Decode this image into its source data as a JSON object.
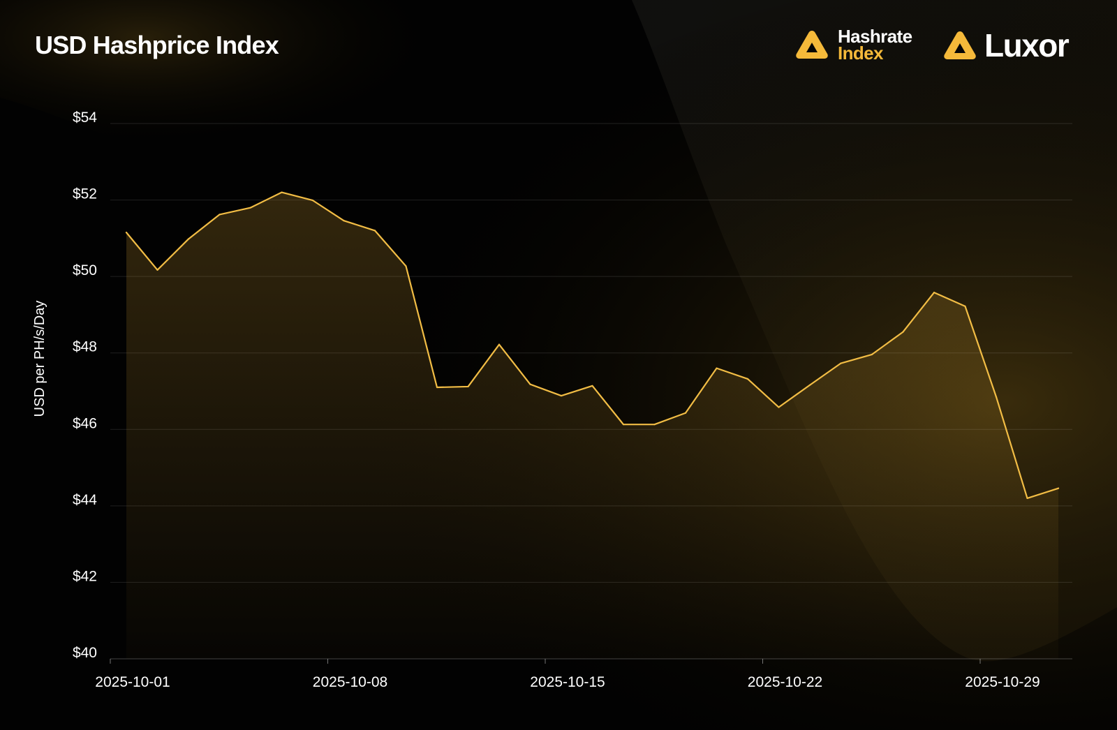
{
  "title": "USD Hashprice Index",
  "logos": {
    "hashrate_line1": "Hashrate",
    "hashrate_line2": "Index",
    "luxor": "Luxor"
  },
  "colors": {
    "background": "#020202",
    "accent": "#f5b93a",
    "line": "#f2bd45",
    "grid": "#2a2620"
  },
  "icons": [
    "hashrate-index-logo-icon",
    "luxor-logo-icon"
  ],
  "chart_data": {
    "type": "area",
    "title": "USD Hashprice Index",
    "ylabel": "USD per PH/s/Day",
    "xlabel": "",
    "ylim": [
      40,
      54
    ],
    "y_ticks": [
      40,
      42,
      44,
      46,
      48,
      50,
      52,
      54
    ],
    "y_tick_labels": [
      "$40",
      "$42",
      "$44",
      "$46",
      "$48",
      "$50",
      "$52",
      "$54"
    ],
    "x_ticks": [
      "2025-10-01",
      "2025-10-08",
      "2025-10-15",
      "2025-10-22",
      "2025-10-29"
    ],
    "grid": true,
    "x": [
      "2025-10-01",
      "2025-10-02",
      "2025-10-03",
      "2025-10-04",
      "2025-10-05",
      "2025-10-06",
      "2025-10-07",
      "2025-10-08",
      "2025-10-09",
      "2025-10-10",
      "2025-10-11",
      "2025-10-12",
      "2025-10-13",
      "2025-10-14",
      "2025-10-15",
      "2025-10-16",
      "2025-10-17",
      "2025-10-18",
      "2025-10-19",
      "2025-10-20",
      "2025-10-21",
      "2025-10-22",
      "2025-10-23",
      "2025-10-24",
      "2025-10-25",
      "2025-10-26",
      "2025-10-27",
      "2025-10-28",
      "2025-10-29",
      "2025-10-30",
      "2025-10-31"
    ],
    "values": [
      51.15,
      50.17,
      50.98,
      51.62,
      51.8,
      52.2,
      51.99,
      51.46,
      51.2,
      50.27,
      47.1,
      47.12,
      48.22,
      47.18,
      46.88,
      47.14,
      46.13,
      46.13,
      46.43,
      47.6,
      47.32,
      46.58,
      47.16,
      47.73,
      47.96,
      48.55,
      49.58,
      49.22,
      46.85,
      44.2,
      44.46
    ]
  }
}
